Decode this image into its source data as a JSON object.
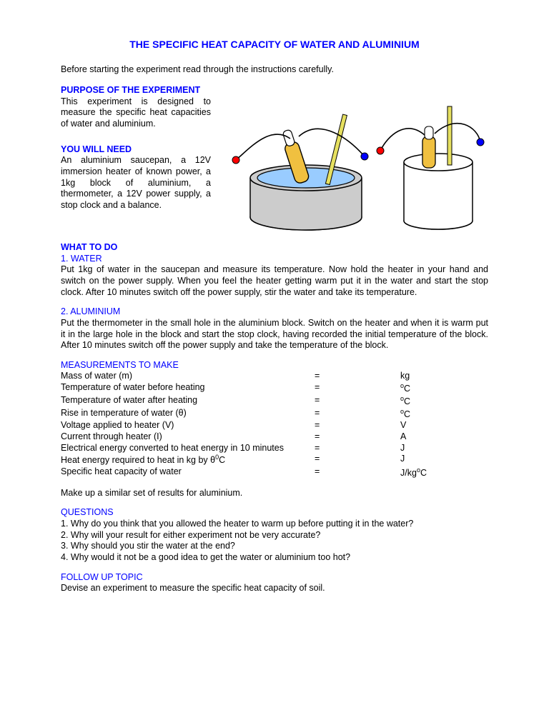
{
  "title": "THE SPECIFIC HEAT CAPACITY OF WATER AND ALUMINIUM",
  "intro": "Before starting the experiment read through the instructions carefully.",
  "sections": {
    "purpose": {
      "heading": "PURPOSE OF THE EXPERIMENT",
      "body": "This experiment is designed to measure the specific heat capacities of water and aluminium."
    },
    "need": {
      "heading": "YOU WILL NEED",
      "body": "An aluminium saucepan, a 12V immersion heater of known power, a 1kg block of aluminium, a thermometer, a 12V power supply, a stop clock and a balance."
    },
    "what": {
      "heading": "WHAT TO DO",
      "part1": {
        "label": "1. WATER",
        "body": "Put 1kg of water in the saucepan and measure its temperature. Now hold the heater in your hand and switch on the power supply. When you feel the heater getting warm put it in the water and start the stop clock. After 10 minutes switch off the power supply, stir the water and take its temperature."
      },
      "part2": {
        "label": "2. ALUMINIUM",
        "body": "Put the thermometer in the small hole in the aluminium block. Switch on the heater and when it is warm put it in the large hole in the block and start the stop clock, having recorded the initial temperature of the block. After 10 minutes switch off the power supply and take the temperature of the block."
      }
    },
    "meas": {
      "heading": "MEASUREMENTS TO MAKE",
      "rows": [
        {
          "label": "Mass of water (m)",
          "unit": "kg"
        },
        {
          "label": "Temperature of water before heating",
          "unit": "oC"
        },
        {
          "label": "Temperature of water after heating",
          "unit": "oC"
        },
        {
          "label": "Rise in temperature of water (θ)",
          "unit": "oC"
        },
        {
          "label": "Voltage applied to heater (V)",
          "unit": "V"
        },
        {
          "label": "Current through heater (I)",
          "unit": "A"
        },
        {
          "label": "Electrical energy converted to heat energy in 10 minutes",
          "unit": "J"
        },
        {
          "label": "Heat energy required to heat in kg by θ0C",
          "unit": "J"
        },
        {
          "label": "Specific heat capacity of water",
          "unit": "J/kgoC"
        }
      ],
      "footer": "Make up a similar set of results for aluminium."
    },
    "questions": {
      "heading": "QUESTIONS",
      "items": [
        "1. Why do you think that you allowed the heater to warm up before putting it in the water?",
        "2. Why will your result for either experiment not be very accurate?",
        "3. Why should you stir the water at the end?",
        "4. Why would it not be a good idea to get the water or aluminium too hot?"
      ]
    },
    "followup": {
      "heading": "FOLLOW UP TOPIC",
      "body": "Devise an experiment to measure the specific heat capacity of soil."
    }
  },
  "diagram": {
    "background": "#ffffff",
    "outline": "#000000",
    "pan_fill": "#cccccc",
    "pan_shadow": "#999999",
    "block_fill": "#ffffff",
    "water_fill": "#99ccff",
    "heater_body": "#f0c040",
    "heater_top": "#ffffff",
    "therm_stick": "#e6e060",
    "wire_black": "#000000",
    "terminal_red": "#ff0000",
    "terminal_blue": "#0000ff"
  }
}
